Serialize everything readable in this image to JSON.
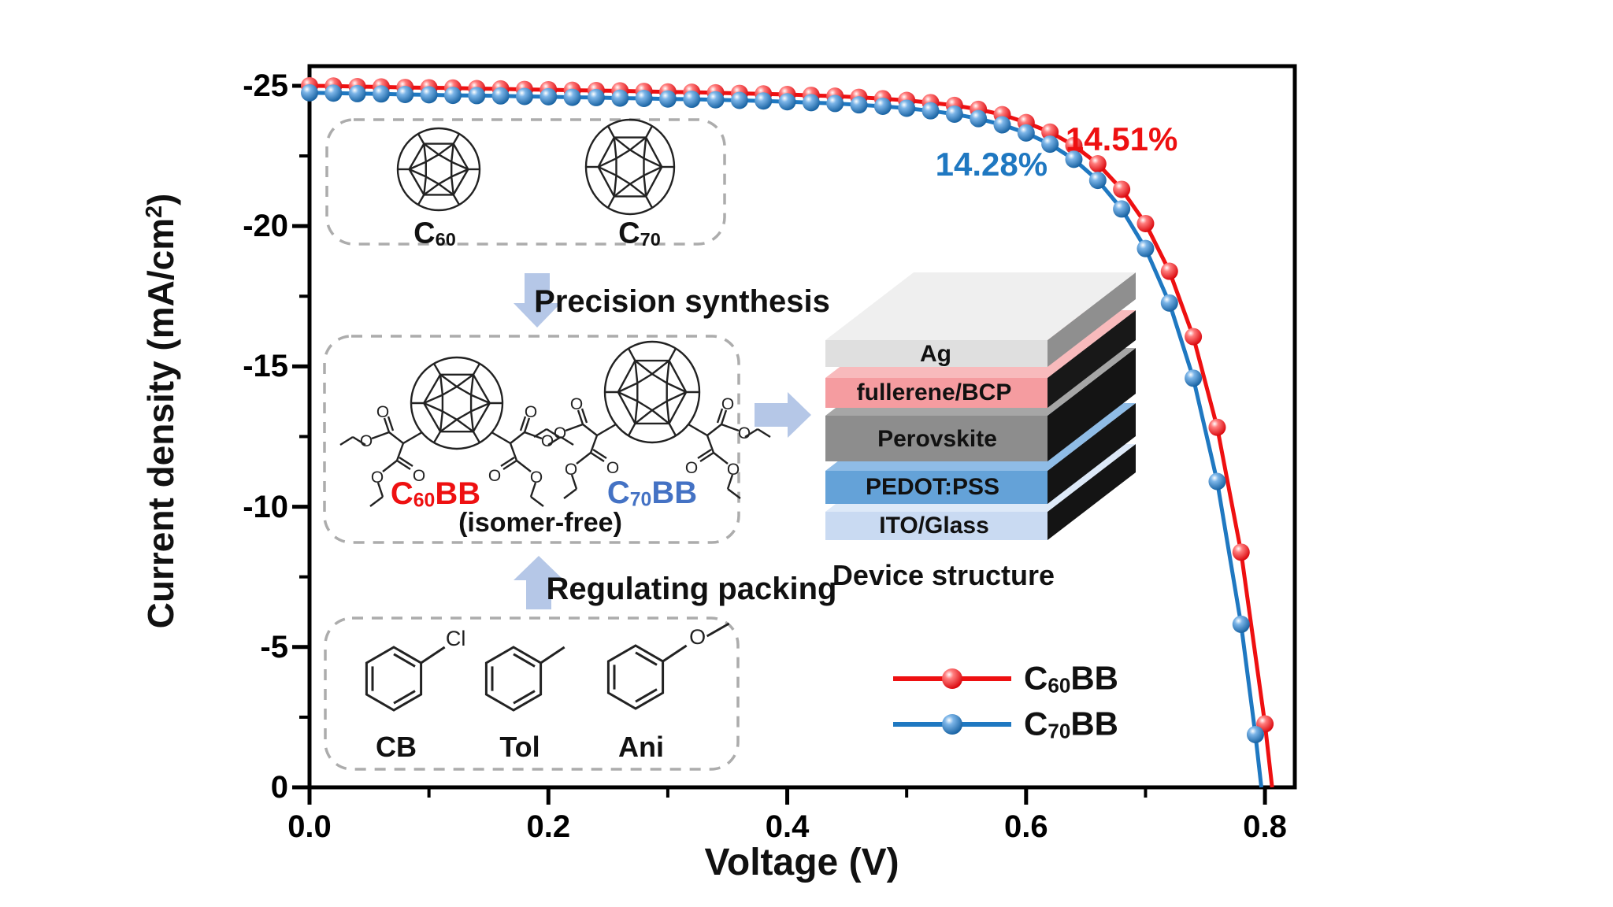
{
  "colors": {
    "red": "#ee1011",
    "blue": "#1f78c1",
    "arrow_blue": "#b5c7e7",
    "dash_gray": "#acacac"
  },
  "chart_data": {
    "type": "line",
    "xlabel": "Voltage (V)",
    "ylabel": "Current density (mA/cm2)",
    "ylabel_pre": "Current density (mA/cm",
    "ylabel_sup": "2",
    "ylabel_post": ")",
    "xlim": [
      0,
      0.825
    ],
    "ylim_top": -25.7,
    "ylim_bottom": 0,
    "x_major_ticks": [
      0.0,
      0.2,
      0.4,
      0.6,
      0.8
    ],
    "x_major_labels": [
      "0.0",
      "0.2",
      "0.4",
      "0.6",
      "0.8"
    ],
    "x_minor_ticks": [
      0.1,
      0.3,
      0.5,
      0.7
    ],
    "y_major_ticks": [
      -25,
      -20,
      -15,
      -10,
      -5,
      0
    ],
    "y_major_labels": [
      "-25",
      "-20",
      "-15",
      "-10",
      "-5",
      "0"
    ],
    "y_minor_ticks": [
      -22.5,
      -17.5,
      -12.5,
      -7.5,
      -2.5
    ],
    "grid": false,
    "legend_position": "lower-right",
    "series": [
      {
        "name": "C60BB",
        "color": "#ee1011",
        "points": [
          [
            0.0,
            -25.0
          ],
          [
            0.02,
            -24.99
          ],
          [
            0.04,
            -24.97
          ],
          [
            0.06,
            -24.96
          ],
          [
            0.08,
            -24.94
          ],
          [
            0.1,
            -24.93
          ],
          [
            0.12,
            -24.92
          ],
          [
            0.14,
            -24.9
          ],
          [
            0.16,
            -24.89
          ],
          [
            0.18,
            -24.87
          ],
          [
            0.2,
            -24.86
          ],
          [
            0.22,
            -24.84
          ],
          [
            0.24,
            -24.83
          ],
          [
            0.26,
            -24.82
          ],
          [
            0.28,
            -24.8
          ],
          [
            0.3,
            -24.78
          ],
          [
            0.32,
            -24.77
          ],
          [
            0.34,
            -24.75
          ],
          [
            0.36,
            -24.73
          ],
          [
            0.38,
            -24.71
          ],
          [
            0.4,
            -24.69
          ],
          [
            0.42,
            -24.66
          ],
          [
            0.44,
            -24.63
          ],
          [
            0.46,
            -24.59
          ],
          [
            0.48,
            -24.54
          ],
          [
            0.5,
            -24.48
          ],
          [
            0.52,
            -24.4
          ],
          [
            0.54,
            -24.3
          ],
          [
            0.56,
            -24.16
          ],
          [
            0.58,
            -23.97
          ],
          [
            0.6,
            -23.69
          ],
          [
            0.62,
            -23.35
          ],
          [
            0.64,
            -22.87
          ],
          [
            0.66,
            -22.22
          ],
          [
            0.68,
            -21.31
          ],
          [
            0.7,
            -20.09
          ],
          [
            0.72,
            -18.39
          ],
          [
            0.74,
            -16.06
          ],
          [
            0.76,
            -12.83
          ],
          [
            0.78,
            -8.38
          ],
          [
            0.8,
            -2.26
          ],
          [
            0.806,
            0.0
          ]
        ]
      },
      {
        "name": "C70BB",
        "color": "#1f78c1",
        "points": [
          [
            0.0,
            -24.75
          ],
          [
            0.02,
            -24.74
          ],
          [
            0.04,
            -24.72
          ],
          [
            0.06,
            -24.71
          ],
          [
            0.08,
            -24.69
          ],
          [
            0.1,
            -24.68
          ],
          [
            0.12,
            -24.66
          ],
          [
            0.14,
            -24.65
          ],
          [
            0.16,
            -24.64
          ],
          [
            0.18,
            -24.62
          ],
          [
            0.2,
            -24.61
          ],
          [
            0.22,
            -24.59
          ],
          [
            0.24,
            -24.58
          ],
          [
            0.26,
            -24.56
          ],
          [
            0.28,
            -24.55
          ],
          [
            0.3,
            -24.53
          ],
          [
            0.32,
            -24.52
          ],
          [
            0.34,
            -24.5
          ],
          [
            0.36,
            -24.48
          ],
          [
            0.38,
            -24.46
          ],
          [
            0.4,
            -24.43
          ],
          [
            0.42,
            -24.4
          ],
          [
            0.44,
            -24.37
          ],
          [
            0.46,
            -24.32
          ],
          [
            0.48,
            -24.27
          ],
          [
            0.5,
            -24.2
          ],
          [
            0.52,
            -24.11
          ],
          [
            0.54,
            -23.99
          ],
          [
            0.56,
            -23.83
          ],
          [
            0.58,
            -23.61
          ],
          [
            0.6,
            -23.32
          ],
          [
            0.62,
            -22.92
          ],
          [
            0.64,
            -22.38
          ],
          [
            0.66,
            -21.63
          ],
          [
            0.68,
            -20.61
          ],
          [
            0.7,
            -19.2
          ],
          [
            0.72,
            -17.26
          ],
          [
            0.74,
            -14.58
          ],
          [
            0.76,
            -10.9
          ],
          [
            0.78,
            -5.81
          ],
          [
            0.792,
            -1.88
          ],
          [
            0.797,
            0.0
          ]
        ]
      }
    ],
    "annotations": [
      {
        "text": "14.51%",
        "color": "#ee1011",
        "x": 0.68,
        "y": -23.1
      },
      {
        "text": "14.28%",
        "color": "#1f78c1",
        "x": 0.571,
        "y": -22.2
      }
    ]
  },
  "legend": {
    "items": [
      {
        "pre": "C",
        "sub": "60",
        "post": "BB",
        "color": "#ee1011"
      },
      {
        "pre": "C",
        "sub": "70",
        "post": "BB",
        "color": "#1f78c1"
      }
    ]
  },
  "insets": {
    "fullerenes": {
      "c60": {
        "pre": "C",
        "sub": "60"
      },
      "c70": {
        "pre": "C",
        "sub": "70"
      }
    },
    "step1_label": "Precision synthesis",
    "step2_label": "Regulating packing",
    "derivatives": {
      "c60bb": {
        "pre": "C",
        "sub": "60",
        "post": "BB",
        "color": "#ee1011"
      },
      "c70bb": {
        "pre": "C",
        "sub": "70",
        "post": "BB",
        "color": "#4472c4"
      },
      "note": "(isomer-free)"
    },
    "solvents": {
      "items": [
        {
          "label": "CB",
          "substituent": "Cl"
        },
        {
          "label": "Tol",
          "substituent": ""
        },
        {
          "label": "Ani",
          "substituent": "O"
        }
      ]
    },
    "atoms": {
      "oxygen": "O"
    },
    "device": {
      "caption": "Device structure",
      "layers": [
        {
          "label": "Ag",
          "front": "#dfdfdf",
          "top": "#efefef",
          "side": "#8f8f8f"
        },
        {
          "label": "fullerene/BCP",
          "front": "#f59ca0",
          "top": "#f8babc",
          "side": "#181818"
        },
        {
          "label": "Perovskite",
          "front": "#8d8d8d",
          "top": "#a6a6a6",
          "side": "#141414"
        },
        {
          "label": "PEDOT:PSS",
          "front": "#64a2d8",
          "top": "#8fbce6",
          "side": "#141414"
        },
        {
          "label": "ITO/Glass",
          "front": "#c9daf2",
          "top": "#dde9f8",
          "side": "#141414"
        }
      ]
    }
  }
}
